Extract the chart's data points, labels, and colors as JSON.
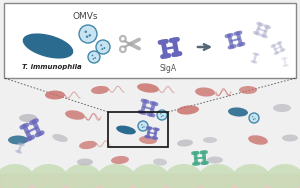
{
  "bg_color": "#f0f0f0",
  "box_bg": "#ffffff",
  "box_border": "#888888",
  "bacterium_dark": "#2b6b8f",
  "bacterium_pink": "#c96b65",
  "bacterium_gray": "#b0b0b8",
  "antibody_purple": "#6666bb",
  "antibody_light": "#aaaacc",
  "antibody_very_light": "#ccccdd",
  "antibody_green": "#44aa88",
  "omv_fill": "#c8e4f0",
  "omv_border": "#4488aa",
  "intestine_fill": "#c8ddb8",
  "intestine_top": "#b8cc9e",
  "villi_pink": "#e8c0b8",
  "scissors_color": "#aaaaaa",
  "arrow_color": "#556677",
  "title_text": "OMVs",
  "label_text": "T. immunophila",
  "siga_text": "SIgA"
}
